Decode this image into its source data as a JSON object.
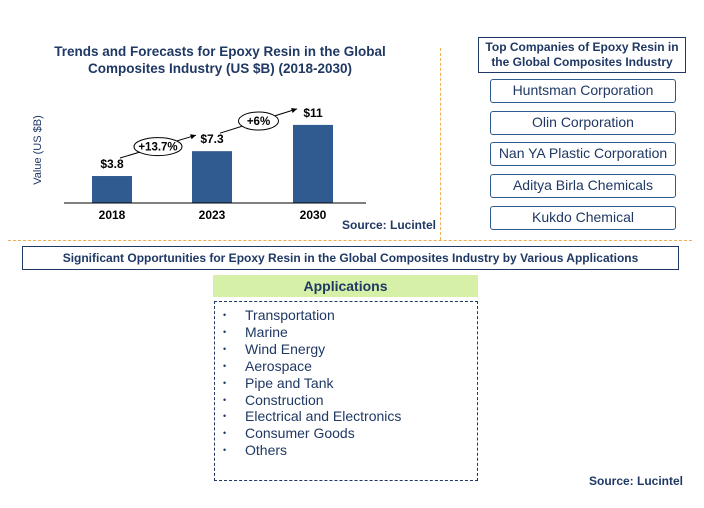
{
  "chart_title": "Trends and Forecasts for Epoxy Resin  in the Global Composites Industry (US $B) (2018-2030)",
  "chart_data": {
    "type": "bar",
    "title": "Trends and Forecasts for Epoxy Resin  in the Global Composites Industry (US $B) (2018-2030)",
    "ylabel": "Value (US $B)",
    "xlabel": "",
    "categories": [
      "2018",
      "2023",
      "2030"
    ],
    "values": [
      3.8,
      7.3,
      11
    ],
    "data_labels": [
      "$3.8",
      "$7.3",
      "$11"
    ],
    "growth_labels": [
      "+13.7%",
      "+6%"
    ],
    "ylim": [
      0,
      12
    ],
    "grid": false,
    "bar_color": "#2f5b91"
  },
  "chart_source": "Source: Lucintel",
  "companies": {
    "title": "Top Companies of Epoxy Resin  in the Global Composites Industry",
    "items": [
      "Huntsman Corporation",
      "Olin Corporation",
      "Nan YA Plastic Corporation",
      "Aditya Birla Chemicals",
      "Kukdo Chemical"
    ]
  },
  "opportunities_title": "Significant Opportunities for Epoxy Resin in the Global Composites Industry by Various Applications",
  "applications": {
    "header": "Applications",
    "bullet": "•",
    "items": [
      "Transportation",
      "Marine",
      "Wind Energy",
      "Aerospace",
      "Pipe and Tank",
      "Construction",
      "Electrical and Electronics",
      "Consumer Goods",
      "Others"
    ]
  },
  "bottom_source": "Source: Lucintel",
  "colors": {
    "text": "#1f3864",
    "bar": "#2f5b91",
    "divider": "#f0b050",
    "applications_header_bg": "#d6f0a8"
  }
}
